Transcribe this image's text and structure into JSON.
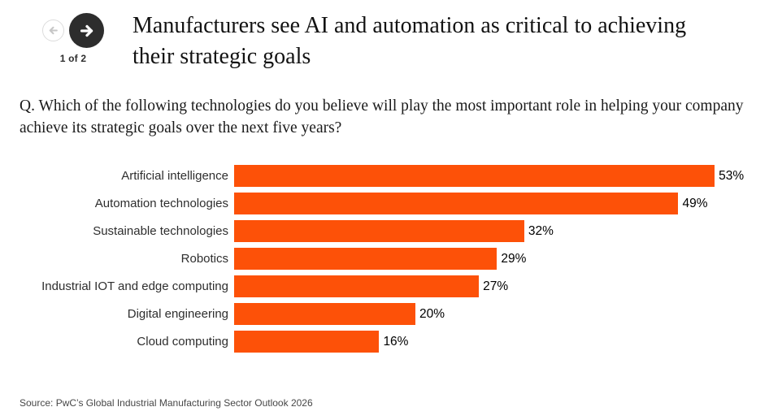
{
  "nav": {
    "page_indicator": "1 of 2",
    "prev_icon": "arrow-left-icon",
    "next_icon": "arrow-right-icon"
  },
  "header": {
    "title": "Manufacturers see AI and automation as critical to achieving their strategic goals"
  },
  "question": "Q. Which of the following technologies do you believe will play the most important role in helping your company achieve its strategic goals over the next five years?",
  "source": "Source: PwC’s Global Industrial Manufacturing Sector Outlook 2026",
  "colors": {
    "bar": "#fd5108",
    "nav_button": "#2d2d2d",
    "nav_disabled_border": "#dcdcdc",
    "nav_disabled_arrow": "#c6c6c6"
  },
  "chart_data": {
    "type": "bar",
    "orientation": "horizontal",
    "title": "",
    "xlabel": "",
    "ylabel": "",
    "categories": [
      "Artificial intelligence",
      "Automation technologies",
      "Sustainable technologies",
      "Robotics",
      "Industrial IOT and edge computing",
      "Digital engineering",
      "Cloud computing"
    ],
    "values": [
      53,
      49,
      32,
      29,
      27,
      20,
      16
    ],
    "value_labels": [
      "53%",
      "49%",
      "32%",
      "29%",
      "27%",
      "20%",
      "16%"
    ],
    "unit": "%",
    "xlim": [
      0,
      59
    ],
    "grid": false,
    "legend": false,
    "bar_color": "#fd5108"
  }
}
